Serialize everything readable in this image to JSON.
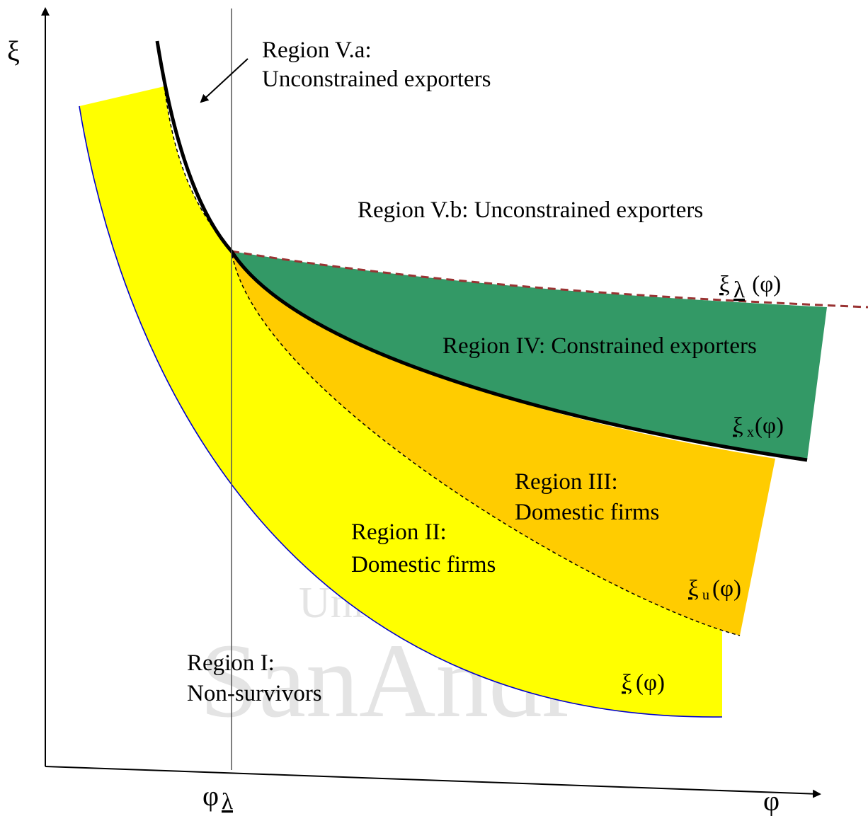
{
  "axes": {
    "x_label": "φ",
    "y_label": "ξ",
    "threshold_main": "φ",
    "threshold_sub": "λ"
  },
  "regions": {
    "va_line1": "Region V.a:",
    "va_line2": "Unconstrained exporters",
    "vb": "Region V.b: Unconstrained exporters",
    "iv": "Region IV: Constrained exporters",
    "iii_line1": "Region III:",
    "iii_line2": "Domestic firms",
    "ii_line1": "Region II:",
    "ii_line2": "Domestic firms",
    "i_line1": "Region I:",
    "i_line2": "Non-survivors"
  },
  "curves": {
    "xi_lambda": {
      "symbol": "ξ",
      "sub": "λ",
      "arg": " (φ)"
    },
    "xi_x": {
      "symbol": "ξ",
      "sub": "x",
      "arg": "(φ)"
    },
    "xi_u": {
      "symbol": "ξ",
      "sub": "u",
      "arg": "(φ)"
    },
    "xi_low": {
      "symbol": "ξ",
      "arg": "(φ)"
    }
  },
  "watermark": {
    "line1": "Uni",
    "line2": "SanAndr"
  },
  "colors": {
    "region_ii": "#ffff00",
    "region_iii": "#ffcc00",
    "region_iv": "#339966",
    "lower_curve": "#0000cc",
    "xi_lambda_curve": "#993333",
    "axis": "#000000"
  }
}
